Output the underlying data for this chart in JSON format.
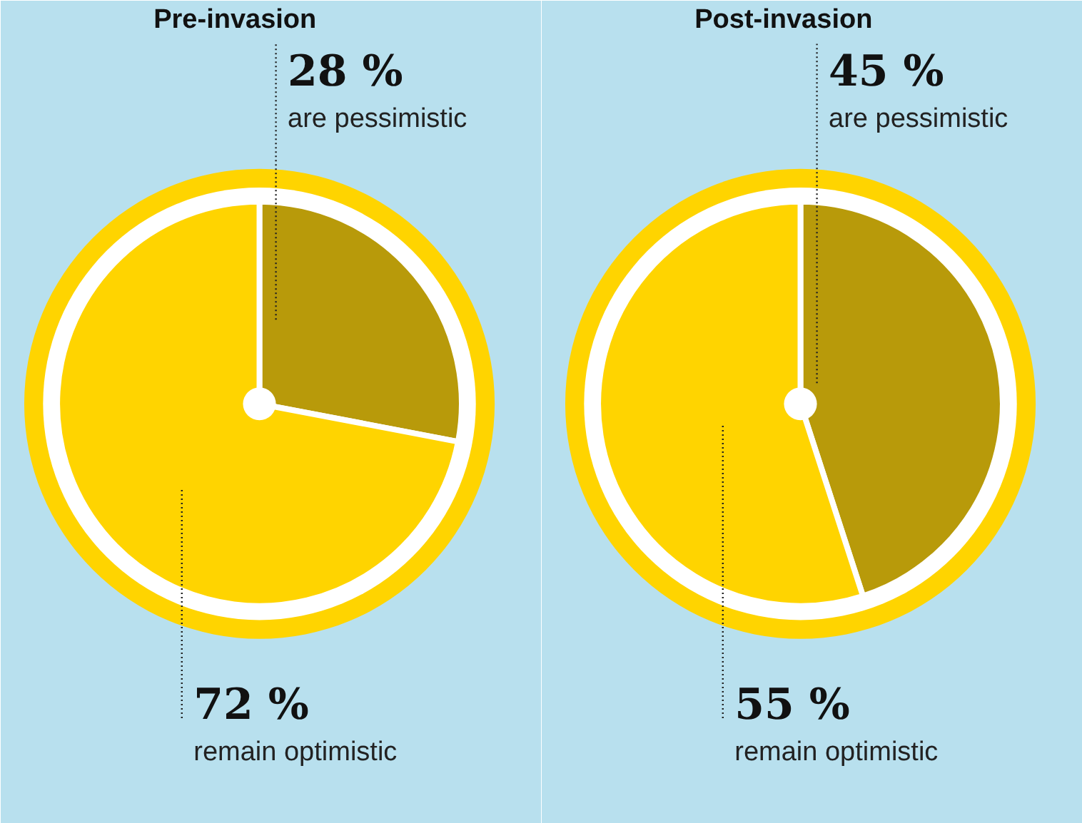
{
  "chart_data": [
    {
      "type": "pie",
      "title": "Pre-invasion",
      "categories": [
        "are pessimistic",
        "remain optimistic"
      ],
      "values": [
        28,
        72
      ],
      "colors": [
        "#b89a0a",
        "#ffd400"
      ],
      "value_labels": [
        "28 %",
        "72 %"
      ]
    },
    {
      "type": "pie",
      "title": "Post-invasion",
      "categories": [
        "are pessimistic",
        "remain optimistic"
      ],
      "values": [
        45,
        55
      ],
      "colors": [
        "#b89a0a",
        "#ffd400"
      ],
      "value_labels": [
        "45 %",
        "55 %"
      ]
    }
  ]
}
